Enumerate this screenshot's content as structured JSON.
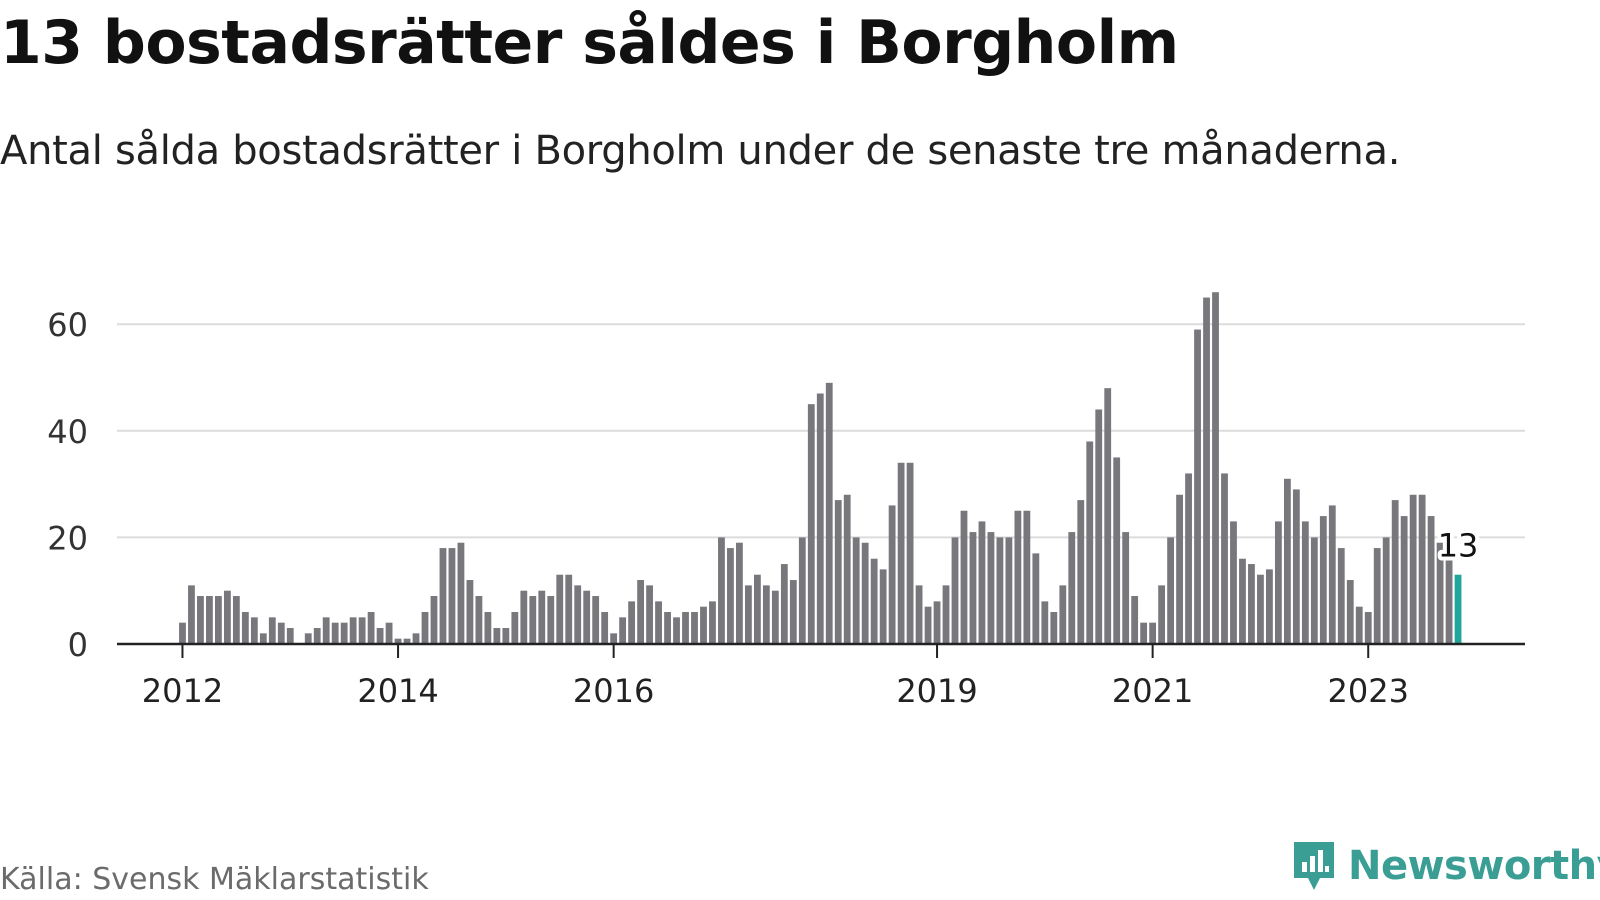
{
  "chart_data": {
    "type": "bar",
    "title": "13 bostadsrätter såldes i Borgholm",
    "subtitle": "Antal sålda bostadsrätter i Borgholm under de senaste tre månaderna.",
    "xlabel": "",
    "ylabel": "",
    "ylim": [
      0,
      70
    ],
    "yticks": [
      0,
      20,
      40,
      60
    ],
    "grid": true,
    "x_start": {
      "year": 2011,
      "month": 1
    },
    "xticks": [
      {
        "label": "2012",
        "index": 12
      },
      {
        "label": "2014",
        "index": 36
      },
      {
        "label": "2016",
        "index": 60
      },
      {
        "label": "2019",
        "index": 96
      },
      {
        "label": "2021",
        "index": 120
      },
      {
        "label": "2023",
        "index": 144
      }
    ],
    "values": [
      0,
      0,
      0,
      0,
      0,
      0,
      0,
      0,
      0,
      0,
      0,
      0,
      4,
      11,
      9,
      9,
      9,
      10,
      9,
      6,
      5,
      2,
      5,
      4,
      3,
      0,
      2,
      3,
      5,
      4,
      4,
      5,
      5,
      6,
      3,
      4,
      1,
      1,
      2,
      6,
      9,
      18,
      18,
      19,
      12,
      9,
      6,
      3,
      3,
      6,
      10,
      9,
      10,
      9,
      13,
      13,
      11,
      10,
      9,
      6,
      2,
      5,
      8,
      12,
      11,
      8,
      6,
      5,
      6,
      6,
      7,
      8,
      20,
      18,
      19,
      11,
      13,
      11,
      10,
      15,
      12,
      20,
      45,
      47,
      49,
      27,
      28,
      20,
      19,
      16,
      14,
      26,
      34,
      34,
      11,
      7,
      8,
      11,
      20,
      25,
      21,
      23,
      21,
      20,
      20,
      25,
      25,
      17,
      8,
      6,
      11,
      21,
      27,
      38,
      44,
      48,
      35,
      21,
      9,
      4,
      4,
      11,
      20,
      28,
      32,
      59,
      65,
      66,
      32,
      23,
      16,
      15,
      13,
      14,
      23,
      31,
      29,
      23,
      20,
      24,
      26,
      18,
      12,
      7,
      6,
      18,
      20,
      27,
      24,
      28,
      28,
      24,
      19,
      16,
      13
    ],
    "highlight_index": 154,
    "highlight_label": "13",
    "colors": {
      "bar": "#77777c",
      "highlight": "#20a69b",
      "grid": "#dcdcdc",
      "axis": "#222222"
    }
  },
  "footer": {
    "source": "Källa: Svensk Mäklarstatistik",
    "brand": "Newsworthy"
  },
  "icons": {
    "brand_logo": "newsworthy-logo-icon"
  }
}
